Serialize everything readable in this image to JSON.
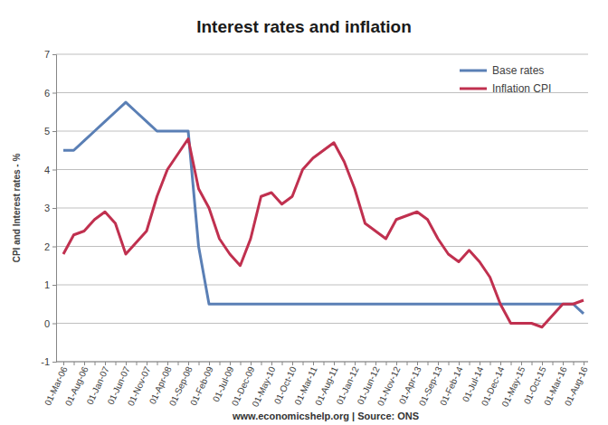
{
  "chart_data": {
    "type": "line",
    "title": "Interest rates and inflation",
    "y_label": "CPI and Interest rates - %",
    "annotations": [
      "www.economicshelp.org | Source: ONS"
    ],
    "categories": [
      "01-Mar-06",
      null,
      "01-Aug-06",
      null,
      "01-Jan-07",
      null,
      "01-Jun-07",
      null,
      "01-Nov-07",
      null,
      "01-Apr-08",
      null,
      "01-Sep-08",
      null,
      "01-Feb-09",
      null,
      "01-Jul-09",
      null,
      "01-Dec-09",
      null,
      "01-May-10",
      null,
      "01-Oct-10",
      null,
      "01-Mar-11",
      null,
      "01-Aug-11",
      null,
      "01-Jan-12",
      null,
      "01-Jun-12",
      null,
      "01-Nov-12",
      null,
      "01-Apr-13",
      null,
      "01-Sep-13",
      null,
      "01-Feb-14",
      null,
      "01-Jul-14",
      null,
      "01-Dec-14",
      null,
      "01-May-15",
      null,
      "01-Oct-15",
      null,
      "01-Mar-16",
      null,
      "01-Aug-16"
    ],
    "series": [
      {
        "name": "Base rates",
        "color": "#5a7fb5",
        "values": [
          4.5,
          4.5,
          4.75,
          5.0,
          5.25,
          5.5,
          5.75,
          5.5,
          5.25,
          5.0,
          5.0,
          5.0,
          5.0,
          2.0,
          0.5,
          0.5,
          0.5,
          0.5,
          0.5,
          0.5,
          0.5,
          0.5,
          0.5,
          0.5,
          0.5,
          0.5,
          0.5,
          0.5,
          0.5,
          0.5,
          0.5,
          0.5,
          0.5,
          0.5,
          0.5,
          0.5,
          0.5,
          0.5,
          0.5,
          0.5,
          0.5,
          0.5,
          0.5,
          0.5,
          0.5,
          0.5,
          0.5,
          0.5,
          0.5,
          0.5,
          0.25
        ]
      },
      {
        "name": "Inflation CPI",
        "color": "#c0304f",
        "values": [
          1.8,
          2.3,
          2.4,
          2.7,
          2.9,
          2.6,
          1.8,
          2.1,
          2.4,
          3.3,
          4.0,
          4.4,
          4.8,
          3.5,
          3.0,
          2.2,
          1.8,
          1.5,
          2.2,
          3.3,
          3.4,
          3.1,
          3.3,
          4.0,
          4.3,
          4.5,
          4.7,
          4.2,
          3.5,
          2.6,
          2.4,
          2.2,
          2.7,
          2.8,
          2.9,
          2.7,
          2.2,
          1.8,
          1.6,
          1.9,
          1.6,
          1.2,
          0.5,
          0.0,
          0.0,
          0.0,
          -0.1,
          0.2,
          0.5,
          0.5,
          0.6
        ]
      }
    ],
    "ylim": [
      -1,
      7
    ],
    "yticks": [
      -1,
      0,
      1,
      2,
      3,
      4,
      5,
      6,
      7
    ],
    "grid": true,
    "legend": "top-right"
  }
}
